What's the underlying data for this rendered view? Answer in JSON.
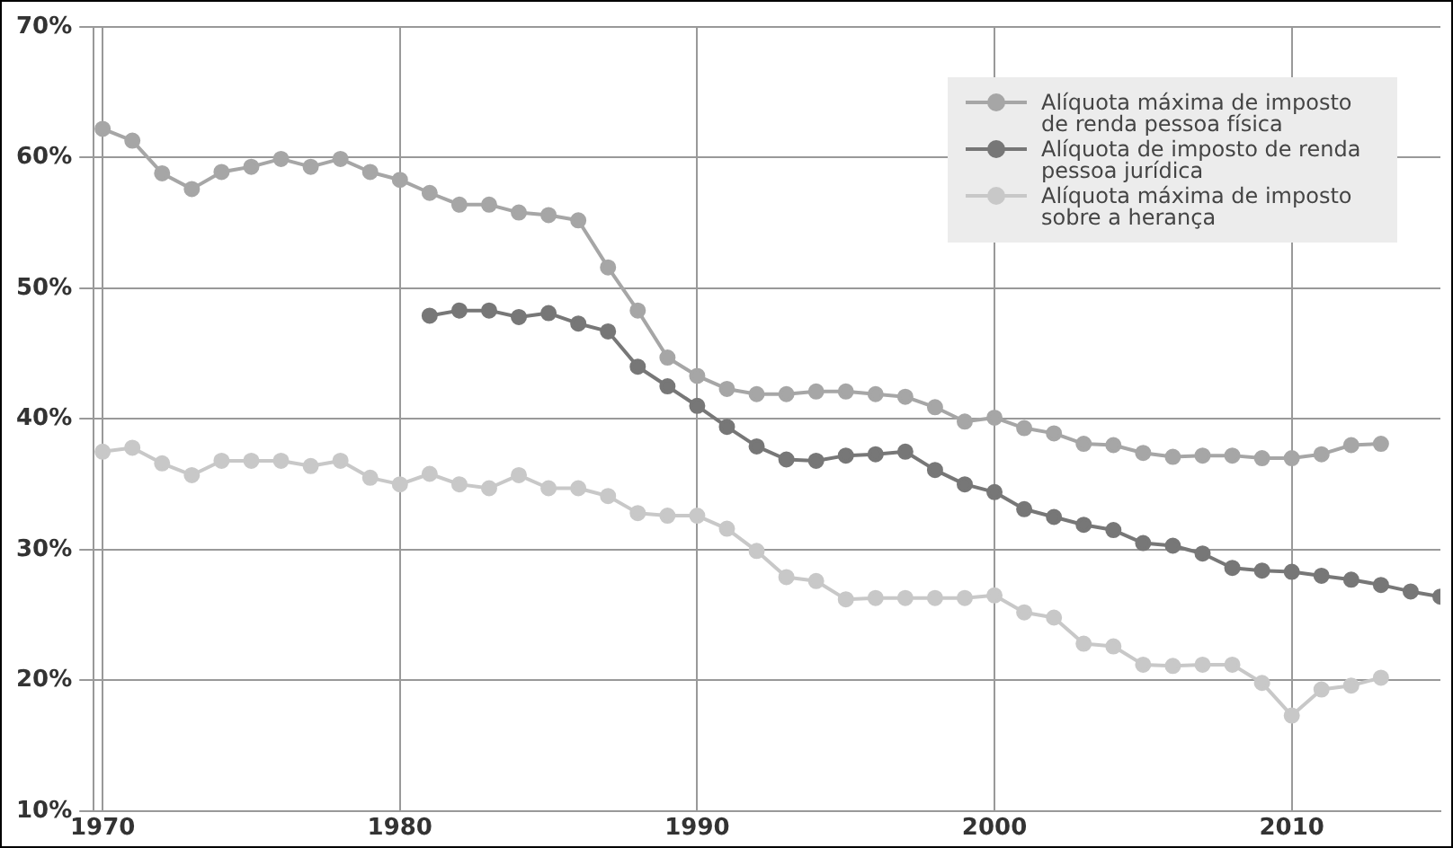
{
  "chart_data": {
    "type": "line",
    "x": [
      1970,
      1971,
      1972,
      1973,
      1974,
      1975,
      1976,
      1977,
      1978,
      1979,
      1980,
      1981,
      1982,
      1983,
      1984,
      1985,
      1986,
      1987,
      1988,
      1989,
      1990,
      1991,
      1992,
      1993,
      1994,
      1995,
      1996,
      1997,
      1998,
      1999,
      2000,
      2001,
      2002,
      2003,
      2004,
      2005,
      2006,
      2007,
      2008,
      2009,
      2010,
      2011,
      2012,
      2013,
      2014,
      2015
    ],
    "series": [
      {
        "name": "Alíquota máxima de imposto de renda pessoa física",
        "color": "#a6a6a6",
        "values": [
          62.2,
          61.3,
          58.8,
          57.6,
          58.9,
          59.3,
          59.9,
          59.3,
          59.9,
          58.9,
          58.3,
          57.3,
          56.4,
          56.4,
          55.8,
          55.6,
          55.2,
          51.6,
          48.3,
          44.7,
          43.3,
          42.3,
          41.9,
          41.9,
          42.1,
          42.1,
          41.9,
          41.7,
          40.9,
          39.8,
          40.1,
          39.3,
          38.9,
          38.1,
          38.0,
          37.4,
          37.1,
          37.2,
          37.2,
          37.0,
          37.0,
          37.3,
          38.0,
          38.1,
          null,
          null
        ]
      },
      {
        "name": "Alíquota de imposto de renda pessoa jurídica",
        "color": "#777777",
        "values": [
          null,
          null,
          null,
          null,
          null,
          null,
          null,
          null,
          null,
          null,
          null,
          47.9,
          48.3,
          48.3,
          47.8,
          48.1,
          47.3,
          46.7,
          44.0,
          42.5,
          41.0,
          39.4,
          37.9,
          36.9,
          36.8,
          37.2,
          37.3,
          37.5,
          36.1,
          35.0,
          34.4,
          33.1,
          32.5,
          31.9,
          31.5,
          30.5,
          30.3,
          29.7,
          28.6,
          28.4,
          28.3,
          28.0,
          27.7,
          27.3,
          26.8,
          26.4
        ]
      },
      {
        "name": "Alíquota máxima de imposto sobre a herança",
        "color": "#c8c8c8",
        "values": [
          37.5,
          37.8,
          36.6,
          35.7,
          36.8,
          36.8,
          36.8,
          36.4,
          36.8,
          35.5,
          35.0,
          35.8,
          35.0,
          34.7,
          35.7,
          34.7,
          34.7,
          34.1,
          32.8,
          32.6,
          32.6,
          31.6,
          29.9,
          27.9,
          27.6,
          26.2,
          26.3,
          26.3,
          26.3,
          26.3,
          26.5,
          25.2,
          24.8,
          22.8,
          22.6,
          21.2,
          21.1,
          21.2,
          21.2,
          19.8,
          17.3,
          19.3,
          19.6,
          20.2,
          null,
          null
        ]
      }
    ],
    "xlim": [
      1969.7,
      2015
    ],
    "xticks": [
      1970,
      1980,
      1990,
      2000,
      2010
    ],
    "ylim": [
      10,
      70
    ],
    "yticks": [
      {
        "value": 10,
        "label": "10%"
      },
      {
        "value": 20,
        "label": "20%"
      },
      {
        "value": 30,
        "label": "30%"
      },
      {
        "value": 40,
        "label": "40%"
      },
      {
        "value": 50,
        "label": "50%"
      },
      {
        "value": 60,
        "label": "60%"
      },
      {
        "value": 70,
        "label": "70%"
      }
    ],
    "grid": true,
    "legend": "top right",
    "marker": "circle",
    "line_style": "solid"
  }
}
